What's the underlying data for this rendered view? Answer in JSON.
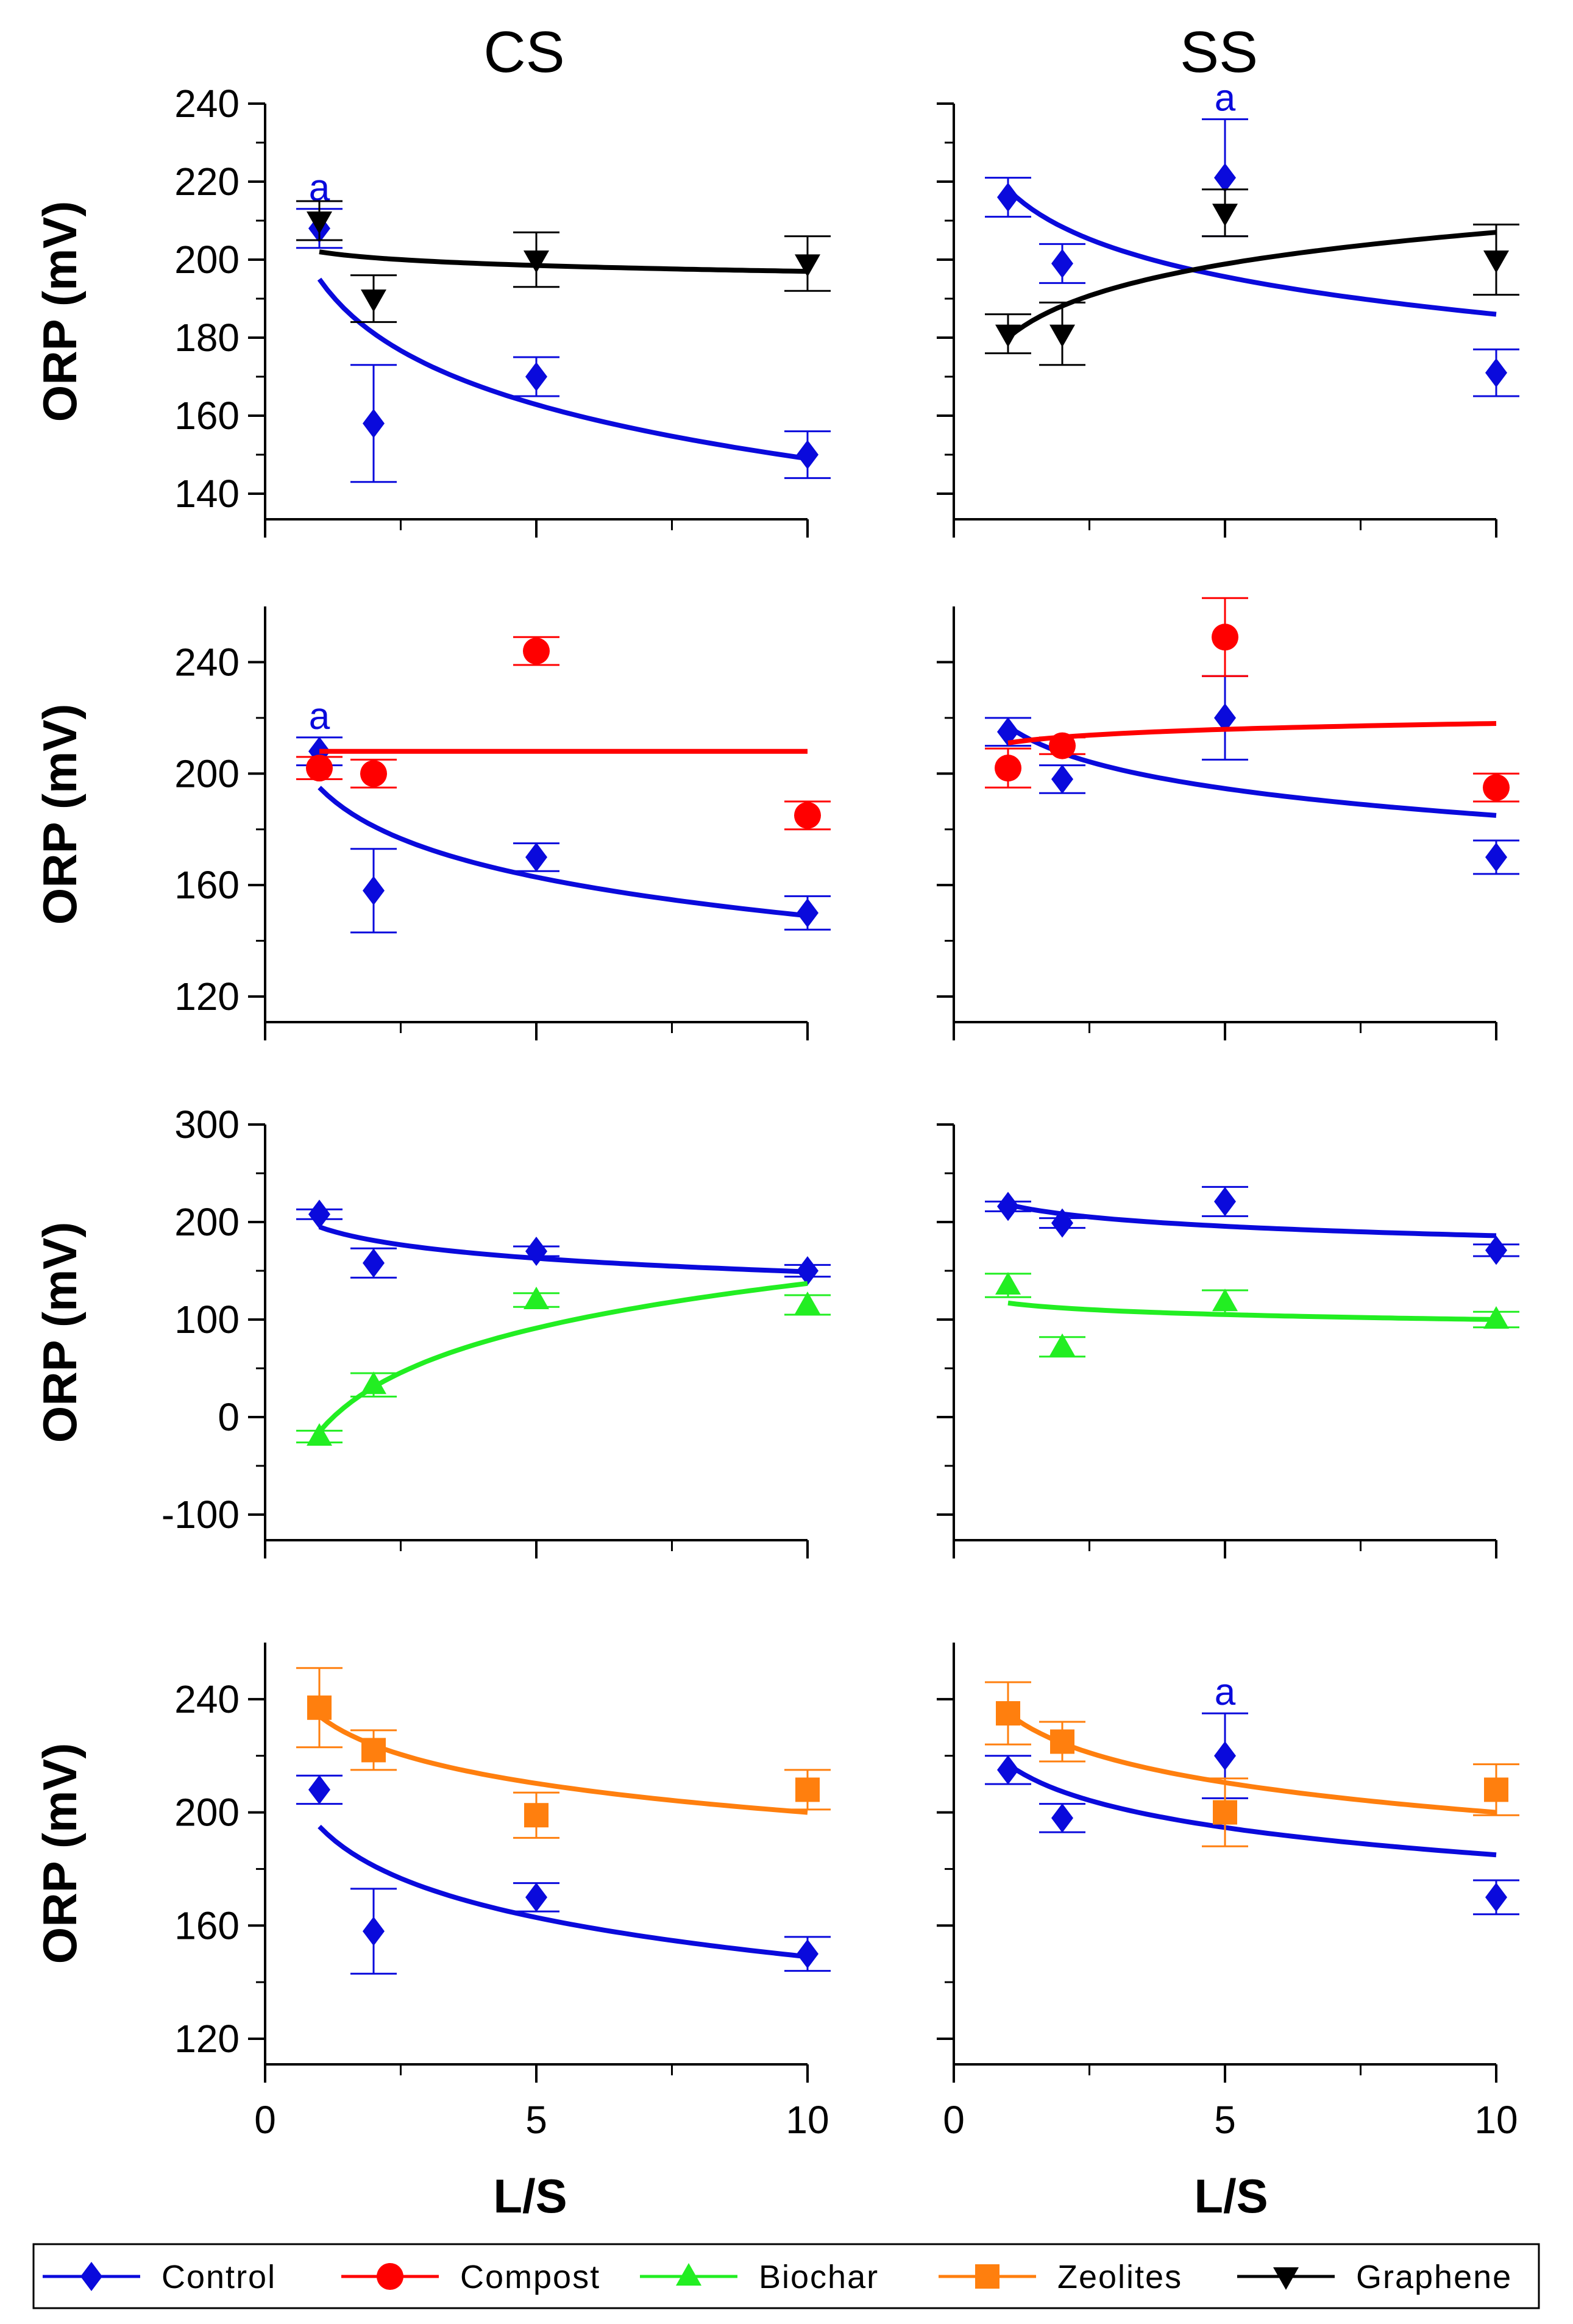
{
  "figure": {
    "column_titles": [
      "CS",
      "SS"
    ],
    "ylabel": "ORP (mV)",
    "xlabel": "L/S"
  },
  "legend": {
    "placement": "bottom",
    "entries": [
      {
        "name": "Control",
        "color": "#0a0adc",
        "marker": "diamond"
      },
      {
        "name": "Compost",
        "color": "#ff0000",
        "marker": "circle"
      },
      {
        "name": "Biochar",
        "color": "#22ee22",
        "marker": "triangle-up"
      },
      {
        "name": "Zeolites",
        "color": "#ff7f0e",
        "marker": "square"
      },
      {
        "name": "Graphene",
        "color": "#000000",
        "marker": "triangle-down"
      }
    ]
  },
  "chart_data": [
    {
      "type": "scatter",
      "panel": "CS-Graphene",
      "column": "CS",
      "xlim": [
        0,
        10
      ],
      "xticks": [
        0,
        5,
        10
      ],
      "ylim": [
        140,
        240
      ],
      "yticks": [
        140,
        160,
        180,
        200,
        220,
        240
      ],
      "show_xticklabels": false,
      "series": [
        {
          "name": "Control",
          "x": [
            1,
            2,
            5,
            10
          ],
          "y": [
            208,
            158,
            170,
            150
          ],
          "err": [
            5,
            15,
            5,
            6
          ],
          "fit": {
            "x": [
              1,
              10
            ],
            "y": [
              195,
              149
            ]
          },
          "annotations": [
            {
              "x": 1,
              "text": "a"
            }
          ]
        },
        {
          "name": "Graphene",
          "x": [
            1,
            2,
            5,
            10
          ],
          "y": [
            210,
            190,
            200,
            199
          ],
          "err": [
            5,
            6,
            7,
            7
          ],
          "fit": {
            "x": [
              1,
              10
            ],
            "y": [
              202,
              197
            ]
          }
        }
      ]
    },
    {
      "type": "scatter",
      "panel": "SS-Graphene",
      "column": "SS",
      "xlim": [
        0,
        10
      ],
      "xticks": [
        0,
        5,
        10
      ],
      "ylim": [
        140,
        240
      ],
      "yticks": [
        140,
        160,
        180,
        200,
        220,
        240
      ],
      "show_xticklabels": false,
      "series": [
        {
          "name": "Control",
          "x": [
            1,
            2,
            5,
            10
          ],
          "y": [
            216,
            199,
            221,
            171
          ],
          "err": [
            5,
            5,
            15,
            6
          ],
          "fit": {
            "x": [
              1,
              10
            ],
            "y": [
              218,
              186
            ]
          },
          "annotations": [
            {
              "x": 5,
              "text": "a"
            }
          ]
        },
        {
          "name": "Graphene",
          "x": [
            1,
            2,
            5,
            10
          ],
          "y": [
            181,
            181,
            212,
            200
          ],
          "err": [
            5,
            8,
            6,
            9
          ],
          "fit": {
            "x": [
              1,
              10
            ],
            "y": [
              180,
              207
            ]
          }
        }
      ]
    },
    {
      "type": "scatter",
      "panel": "CS-Compost",
      "column": "CS",
      "xlim": [
        0,
        10
      ],
      "xticks": [
        0,
        5,
        10
      ],
      "ylim": [
        120,
        260
      ],
      "yticks": [
        120,
        160,
        200,
        240
      ],
      "show_xticklabels": false,
      "series": [
        {
          "name": "Control",
          "x": [
            1,
            2,
            5,
            10
          ],
          "y": [
            208,
            158,
            170,
            150
          ],
          "err": [
            5,
            15,
            5,
            6
          ],
          "fit": {
            "x": [
              1,
              10
            ],
            "y": [
              195,
              149
            ]
          },
          "annotations": [
            {
              "x": 1,
              "text": "a"
            }
          ]
        },
        {
          "name": "Compost",
          "x": [
            1,
            2,
            5,
            10
          ],
          "y": [
            202,
            200,
            244,
            185
          ],
          "err": [
            4,
            5,
            5,
            5
          ],
          "fit": {
            "x": [
              1,
              10
            ],
            "y": [
              208,
              208
            ]
          }
        }
      ]
    },
    {
      "type": "scatter",
      "panel": "SS-Compost",
      "column": "SS",
      "xlim": [
        0,
        10
      ],
      "xticks": [
        0,
        5,
        10
      ],
      "ylim": [
        120,
        260
      ],
      "yticks": [
        120,
        160,
        200,
        240
      ],
      "show_xticklabels": false,
      "series": [
        {
          "name": "Control",
          "x": [
            1,
            2,
            5,
            10
          ],
          "y": [
            215,
            198,
            220,
            170
          ],
          "err": [
            5,
            5,
            15,
            6
          ],
          "fit": {
            "x": [
              1,
              10
            ],
            "y": [
              217,
              185
            ]
          }
        },
        {
          "name": "Compost",
          "x": [
            1,
            2,
            5,
            10
          ],
          "y": [
            202,
            210,
            249,
            195
          ],
          "err": [
            7,
            3,
            14,
            5
          ],
          "fit": {
            "x": [
              1,
              10
            ],
            "y": [
              211,
              218
            ]
          }
        }
      ]
    },
    {
      "type": "scatter",
      "panel": "CS-Biochar",
      "column": "CS",
      "xlim": [
        0,
        10
      ],
      "xticks": [
        0,
        5,
        10
      ],
      "ylim": [
        -100,
        300
      ],
      "yticks": [
        -100,
        0,
        100,
        200,
        300
      ],
      "show_xticklabels": false,
      "series": [
        {
          "name": "Control",
          "x": [
            1,
            2,
            5,
            10
          ],
          "y": [
            208,
            158,
            170,
            150
          ],
          "err": [
            5,
            15,
            5,
            6
          ],
          "fit": {
            "x": [
              1,
              10
            ],
            "y": [
              195,
              149
            ]
          }
        },
        {
          "name": "Biochar",
          "x": [
            1,
            2,
            5,
            10
          ],
          "y": [
            -20,
            33,
            120,
            115
          ],
          "err": [
            6,
            12,
            7,
            10
          ],
          "fit": {
            "x": [
              1,
              10
            ],
            "y": [
              -15,
              137
            ]
          }
        }
      ]
    },
    {
      "type": "scatter",
      "panel": "SS-Biochar",
      "column": "SS",
      "xlim": [
        0,
        10
      ],
      "xticks": [
        0,
        5,
        10
      ],
      "ylim": [
        -100,
        300
      ],
      "yticks": [
        -100,
        0,
        100,
        200,
        300
      ],
      "show_xticklabels": false,
      "series": [
        {
          "name": "Control",
          "x": [
            1,
            2,
            5,
            10
          ],
          "y": [
            216,
            199,
            221,
            171
          ],
          "err": [
            5,
            5,
            15,
            6
          ],
          "fit": {
            "x": [
              1,
              10
            ],
            "y": [
              218,
              186
            ]
          }
        },
        {
          "name": "Biochar",
          "x": [
            1,
            2,
            5,
            10
          ],
          "y": [
            135,
            72,
            118,
            100
          ],
          "err": [
            12,
            10,
            12,
            8
          ],
          "fit": {
            "x": [
              1,
              10
            ],
            "y": [
              117,
              100
            ]
          }
        }
      ]
    },
    {
      "type": "scatter",
      "panel": "CS-Zeolites",
      "column": "CS",
      "xlim": [
        0,
        10
      ],
      "xticks": [
        0,
        5,
        10
      ],
      "ylim": [
        120,
        260
      ],
      "yticks": [
        120,
        160,
        200,
        240
      ],
      "show_xticklabels": true,
      "series": [
        {
          "name": "Control",
          "x": [
            1,
            2,
            5,
            10
          ],
          "y": [
            208,
            158,
            170,
            150
          ],
          "err": [
            5,
            15,
            5,
            6
          ],
          "fit": {
            "x": [
              1,
              10
            ],
            "y": [
              195,
              149
            ]
          }
        },
        {
          "name": "Zeolites",
          "x": [
            1,
            2,
            5,
            10
          ],
          "y": [
            237,
            222,
            199,
            208
          ],
          "err": [
            14,
            7,
            8,
            7
          ],
          "fit": {
            "x": [
              1,
              10
            ],
            "y": [
              234,
              200
            ]
          }
        }
      ]
    },
    {
      "type": "scatter",
      "panel": "SS-Zeolites",
      "column": "SS",
      "xlim": [
        0,
        10
      ],
      "xticks": [
        0,
        5,
        10
      ],
      "ylim": [
        120,
        260
      ],
      "yticks": [
        120,
        160,
        200,
        240
      ],
      "show_xticklabels": true,
      "series": [
        {
          "name": "Control",
          "x": [
            1,
            2,
            5,
            10
          ],
          "y": [
            215,
            198,
            220,
            170
          ],
          "err": [
            5,
            5,
            15,
            6
          ],
          "fit": {
            "x": [
              1,
              10
            ],
            "y": [
              217,
              185
            ]
          },
          "annotations": [
            {
              "x": 5,
              "text": "a"
            }
          ]
        },
        {
          "name": "Zeolites",
          "x": [
            1,
            2,
            5,
            10
          ],
          "y": [
            235,
            225,
            200,
            208
          ],
          "err": [
            11,
            7,
            12,
            9
          ],
          "fit": {
            "x": [
              1,
              10
            ],
            "y": [
              235,
              200
            ]
          }
        }
      ]
    }
  ]
}
